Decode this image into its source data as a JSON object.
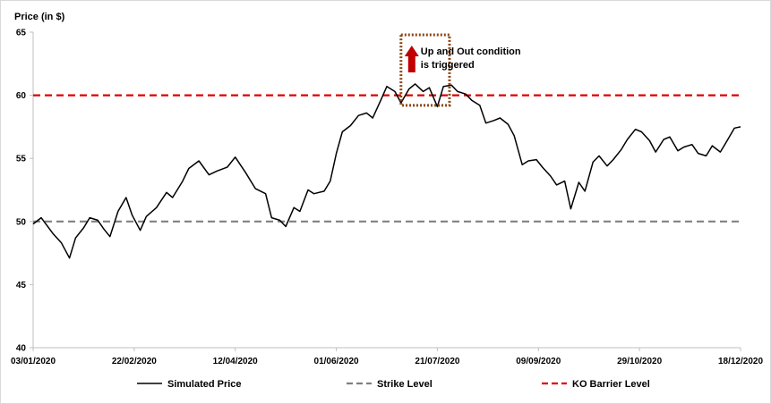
{
  "chart_data": {
    "type": "line",
    "ylabel": "Price (in $)",
    "ylim": [
      40,
      65
    ],
    "yticks": [
      40,
      45,
      50,
      55,
      60,
      65
    ],
    "x_tick_labels": [
      "03/01/2020",
      "22/02/2020",
      "12/04/2020",
      "01/06/2020",
      "21/07/2020",
      "09/09/2020",
      "29/10/2020",
      "18/12/2020"
    ],
    "grid": false,
    "legend_position": "bottom",
    "series": [
      {
        "name": "Simulated Price",
        "color": "#000000",
        "style": "solid",
        "x": [
          "03/01/2020",
          "07/01/2020",
          "13/01/2020",
          "17/01/2020",
          "21/01/2020",
          "24/01/2020",
          "28/01/2020",
          "31/01/2020",
          "04/02/2020",
          "07/02/2020",
          "10/02/2020",
          "14/02/2020",
          "18/02/2020",
          "21/02/2020",
          "25/02/2020",
          "28/02/2020",
          "04/03/2020",
          "09/03/2020",
          "12/03/2020",
          "17/03/2020",
          "20/03/2020",
          "25/03/2020",
          "30/03/2020",
          "03/04/2020",
          "08/04/2020",
          "12/04/2020",
          "17/04/2020",
          "22/04/2020",
          "27/04/2020",
          "30/04/2020",
          "04/05/2020",
          "07/05/2020",
          "11/05/2020",
          "14/05/2020",
          "18/05/2020",
          "21/05/2020",
          "26/05/2020",
          "29/05/2020",
          "01/06/2020",
          "04/06/2020",
          "08/06/2020",
          "12/06/2020",
          "16/06/2020",
          "19/06/2020",
          "23/06/2020",
          "26/06/2020",
          "30/06/2020",
          "03/07/2020",
          "07/07/2020",
          "10/07/2020",
          "14/07/2020",
          "17/07/2020",
          "21/07/2020",
          "24/07/2020",
          "28/07/2020",
          "31/07/2020",
          "04/08/2020",
          "07/08/2020",
          "11/08/2020",
          "14/08/2020",
          "18/08/2020",
          "21/08/2020",
          "25/08/2020",
          "28/08/2020",
          "01/09/2020",
          "04/09/2020",
          "08/09/2020",
          "11/09/2020",
          "15/09/2020",
          "18/09/2020",
          "22/09/2020",
          "25/09/2020",
          "29/09/2020",
          "02/10/2020",
          "06/10/2020",
          "09/10/2020",
          "13/10/2020",
          "16/10/2020",
          "20/10/2020",
          "23/10/2020",
          "27/10/2020",
          "30/10/2020",
          "03/11/2020",
          "06/11/2020",
          "10/11/2020",
          "13/11/2020",
          "17/11/2020",
          "20/11/2020",
          "24/11/2020",
          "27/11/2020",
          "01/12/2020",
          "04/12/2020",
          "08/12/2020",
          "11/12/2020",
          "15/12/2020",
          "18/12/2020"
        ],
        "values": [
          49.8,
          50.3,
          49.0,
          48.3,
          47.1,
          48.7,
          49.5,
          50.3,
          50.1,
          49.4,
          48.8,
          50.8,
          51.9,
          50.5,
          49.3,
          50.4,
          51.1,
          52.3,
          51.9,
          53.2,
          54.2,
          54.8,
          53.7,
          54.0,
          54.3,
          55.1,
          53.9,
          52.6,
          52.2,
          50.3,
          50.1,
          49.6,
          51.1,
          50.8,
          52.5,
          52.2,
          52.4,
          53.2,
          55.4,
          57.1,
          57.6,
          58.4,
          58.6,
          58.2,
          59.6,
          60.7,
          60.3,
          59.4,
          60.5,
          60.9,
          60.3,
          60.6,
          59.1,
          60.7,
          60.8,
          60.3,
          60.1,
          59.6,
          59.2,
          57.8,
          58.0,
          58.2,
          57.7,
          56.8,
          54.5,
          54.8,
          54.9,
          54.3,
          53.6,
          52.9,
          53.2,
          51.0,
          53.1,
          52.4,
          54.7,
          55.2,
          54.4,
          54.9,
          55.7,
          56.5,
          57.3,
          57.1,
          56.4,
          55.5,
          56.5,
          56.7,
          55.6,
          55.9,
          56.1,
          55.4,
          55.2,
          56.0,
          55.5,
          56.3,
          57.4,
          57.5
        ]
      },
      {
        "name": "Strike Level",
        "color": "#808080",
        "style": "dashed",
        "value": 50
      },
      {
        "name": "KO Barrier Level",
        "color": "#e00000",
        "style": "dashed",
        "value": 60
      }
    ],
    "annotation": {
      "lines": [
        "Up and Out condition",
        "is triggered"
      ],
      "box_color": "#8b4513",
      "arrow_color": "#c00000",
      "x_range": [
        "03/07/2020",
        "27/07/2020"
      ],
      "y_range": [
        59.2,
        65
      ]
    }
  }
}
